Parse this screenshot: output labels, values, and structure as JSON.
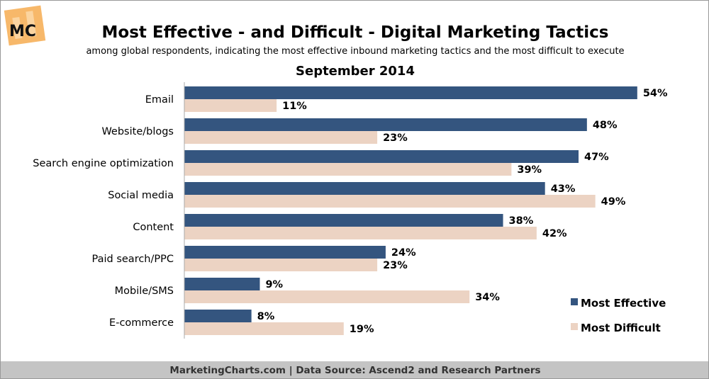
{
  "chart_data": {
    "type": "bar",
    "orientation": "horizontal",
    "title": "Most Effective - and Difficult - Digital Marketing Tactics",
    "subtitle": "among global respondents, indicating the most effective inbound marketing tactics and the most difficult to execute",
    "period": "September 2014",
    "categories": [
      "Email",
      "Website/blogs",
      "Search engine optimization",
      "Social media",
      "Content",
      "Paid search/PPC",
      "Mobile/SMS",
      "E-commerce"
    ],
    "series": [
      {
        "name": "Most Effective",
        "color": "#34557f",
        "values": [
          54,
          48,
          47,
          43,
          38,
          24,
          9,
          8
        ]
      },
      {
        "name": "Most Difficult",
        "color": "#ecd3c3",
        "values": [
          11,
          23,
          39,
          49,
          42,
          23,
          34,
          19
        ]
      }
    ],
    "value_suffix": "%",
    "legend_position": "bottom-right",
    "grid": false
  },
  "logo": {
    "text": "MC"
  },
  "footer": "MarketingCharts.com | Data Source: Ascend2 and Research Partners"
}
